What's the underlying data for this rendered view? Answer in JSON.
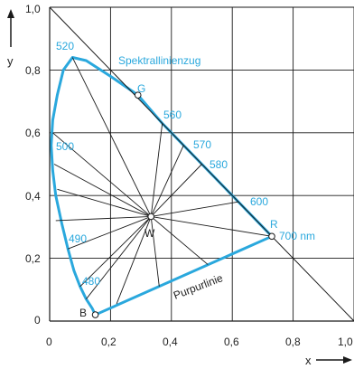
{
  "colors": {
    "locus": "#2aa8dd",
    "lines": "#1a1a1a",
    "text": "#222222"
  },
  "chart_data": {
    "type": "scatter",
    "xlabel": "x",
    "ylabel": "y",
    "xlim": [
      0,
      1.0
    ],
    "ylim": [
      0,
      1.0
    ],
    "grid": true,
    "x_ticks": [
      "0",
      "0,2",
      "0,4",
      "0,6",
      "0,8",
      "1,0"
    ],
    "y_ticks": [
      "0",
      "0,2",
      "0,4",
      "0,6",
      "0,8",
      "1,0"
    ],
    "spectral_locus_label": "Spektrallinienzug",
    "purple_line_label": "Purpurlinie",
    "wavelength_labels": [
      "480",
      "490",
      "500",
      "520",
      "560",
      "570",
      "580",
      "600",
      "700 nm"
    ],
    "points": [
      {
        "label": "W",
        "x": 0.333,
        "y": 0.333
      },
      {
        "label": "G",
        "x": 0.29,
        "y": 0.72
      },
      {
        "label": "R",
        "x": 0.73,
        "y": 0.27
      },
      {
        "label": "B",
        "x": 0.15,
        "y": 0.02
      }
    ],
    "spectral_locus": [
      [
        0.15,
        0.02
      ],
      [
        0.14,
        0.04
      ],
      [
        0.12,
        0.07
      ],
      [
        0.1,
        0.11
      ],
      [
        0.08,
        0.16
      ],
      [
        0.06,
        0.23
      ],
      [
        0.04,
        0.31
      ],
      [
        0.02,
        0.4
      ],
      [
        0.01,
        0.48
      ],
      [
        0.005,
        0.56
      ],
      [
        0.01,
        0.64
      ],
      [
        0.025,
        0.72
      ],
      [
        0.045,
        0.8
      ],
      [
        0.075,
        0.84
      ],
      [
        0.12,
        0.83
      ],
      [
        0.2,
        0.78
      ],
      [
        0.29,
        0.72
      ],
      [
        0.37,
        0.63
      ],
      [
        0.44,
        0.56
      ],
      [
        0.5,
        0.5
      ],
      [
        0.58,
        0.42
      ],
      [
        0.66,
        0.34
      ],
      [
        0.73,
        0.27
      ]
    ]
  }
}
